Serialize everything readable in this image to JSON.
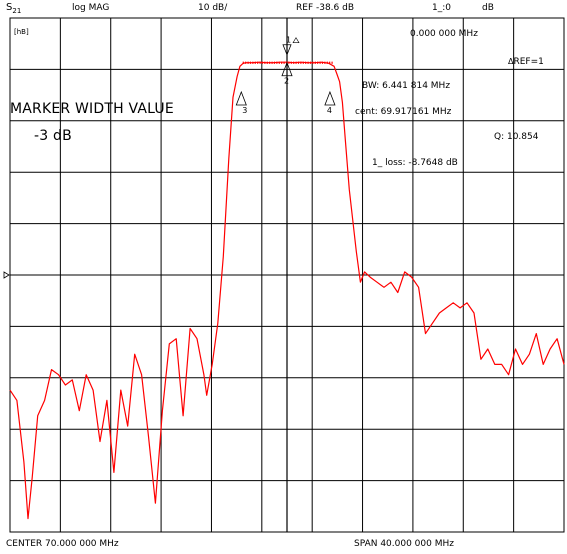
{
  "header": {
    "param_main": "S",
    "param_sub": "21",
    "format": "log MAG",
    "scale": "10 dB/",
    "ref": "REF -38.6 dB",
    "marker_hdr": "1_:0",
    "unit": "dB"
  },
  "screen": {
    "ch_label": "[hB]",
    "marker_freq": "0.000 000 MHz",
    "ref_marker": "REF=1",
    "bw": "BW:   6.441 814 MHz",
    "cent": "cent:  69.917161 MHz",
    "q": "Q: 10.854",
    "loss": "1_ loss: -8.7648 dB",
    "title_line1": "MARKER WIDTH VALUE",
    "title_line2": "-3 dB"
  },
  "footer": {
    "center": "CENTER   70.000 000 MHz",
    "span": "SPAN   40.000 000 MHz"
  },
  "markers": [
    {
      "label": "3",
      "freq": 66.7
    },
    {
      "label": "1",
      "freq": 70.0
    },
    {
      "label": "2",
      "freq": 70.0
    },
    {
      "label": "4",
      "freq": 73.1
    }
  ],
  "colors": {
    "trace": "#ff0000",
    "grid": "#000000",
    "background": "#ffffff"
  },
  "chart_data": {
    "type": "line",
    "x_unit": "MHz",
    "y_unit": "dB",
    "xlim": [
      50,
      90
    ],
    "ylim": [
      -138.6,
      -38.6
    ],
    "grid": true,
    "series": [
      {
        "x": [
          50.0,
          50.5,
          51.0,
          51.3,
          51.6,
          52.0,
          52.5,
          53.0,
          53.5,
          54.0,
          54.5,
          55.0,
          55.5,
          56.0,
          56.5,
          57.0,
          57.5,
          58.0,
          58.5,
          59.0,
          59.5,
          60.0,
          60.5,
          61.0,
          61.5,
          62.0,
          62.5,
          63.0,
          63.5,
          64.0,
          64.2,
          64.6,
          65.0,
          65.4,
          65.8,
          66.1,
          66.4,
          66.6,
          66.8,
          67.0,
          67.5,
          68.0,
          68.5,
          69.0,
          69.5,
          70.0,
          70.5,
          71.0,
          71.5,
          72.0,
          72.5,
          73.0,
          73.4,
          73.6,
          73.8,
          74.0,
          74.2,
          74.5,
          75.0,
          75.3,
          75.6,
          76.0,
          76.5,
          77.0,
          77.5,
          78.0,
          78.5,
          79.0,
          79.5,
          80.0,
          80.5,
          81.0,
          81.5,
          82.0,
          82.5,
          83.0,
          83.5,
          84.0,
          84.5,
          85.0,
          85.5,
          86.0,
          86.5,
          87.0,
          87.5,
          88.0,
          88.5,
          89.0,
          89.5,
          90.0
        ],
        "y": [
          -111,
          -113,
          -125,
          -136,
          -128,
          -116,
          -113,
          -107,
          -108,
          -110,
          -109,
          -115,
          -108,
          -111,
          -121,
          -113,
          -127,
          -111,
          -118,
          -104,
          -108,
          -120,
          -133,
          -115,
          -102,
          -101,
          -116,
          -99,
          -101,
          -108,
          -112,
          -106,
          -98,
          -85,
          -66,
          -54,
          -50,
          -48,
          -47.5,
          -47.3,
          -47.3,
          -47.2,
          -47.3,
          -47.3,
          -47.2,
          -47.2,
          -47.3,
          -47.2,
          -47.3,
          -47.3,
          -47.2,
          -47.4,
          -48,
          -49.5,
          -51,
          -55,
          -62,
          -72,
          -84,
          -90,
          -88,
          -89,
          -90,
          -91,
          -90,
          -92,
          -88,
          -89,
          -91,
          -100,
          -98,
          -96,
          -95,
          -94,
          -95,
          -94,
          -96,
          -105,
          -103,
          -106,
          -106,
          -108,
          -103,
          -106,
          -104,
          -100,
          -106,
          -103,
          -101,
          -106
        ]
      }
    ]
  }
}
